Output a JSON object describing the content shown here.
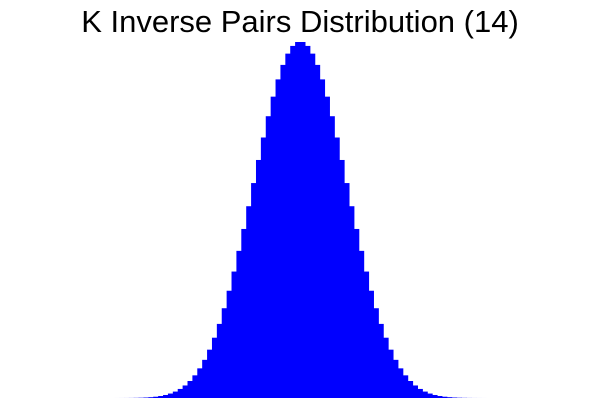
{
  "chart_data": {
    "type": "bar",
    "title": "K Inverse Pairs Distribution (14)",
    "xlabel": "",
    "ylabel": "",
    "n": 14,
    "x_range": [
      0,
      91
    ],
    "values": [
      1,
      13,
      90,
      441,
      1715,
      5616,
      16080,
      41173,
      95931,
      206143,
      412542,
      774619,
      1372117,
      2303629,
      3680526,
      5614452,
      8197897,
      11477972,
      15445495,
      20016735,
      25016840,
      30176005,
      35141935,
      39515445,
      42892270,
      44916295,
      45382305,
      44916295,
      42892270,
      39515445,
      35141935,
      30176005,
      25016840,
      20016735,
      15445495,
      11477972,
      8197897,
      5614452,
      3680526,
      2303629,
      1372117,
      774619,
      412542,
      206143,
      95931,
      41173,
      16080,
      5616,
      1715,
      441,
      90,
      13,
      1,
      0,
      0,
      0,
      0,
      0,
      0,
      0,
      0,
      0,
      0,
      0,
      0,
      0,
      0,
      0,
      0,
      0,
      0,
      0,
      0,
      0,
      0,
      0,
      0,
      0,
      0,
      0,
      0,
      0,
      0,
      0,
      0,
      0,
      0,
      0,
      0,
      0,
      0,
      0
    ],
    "bar_color": "#0000ff",
    "grid": false,
    "axes_visible": false,
    "legend": "none"
  }
}
